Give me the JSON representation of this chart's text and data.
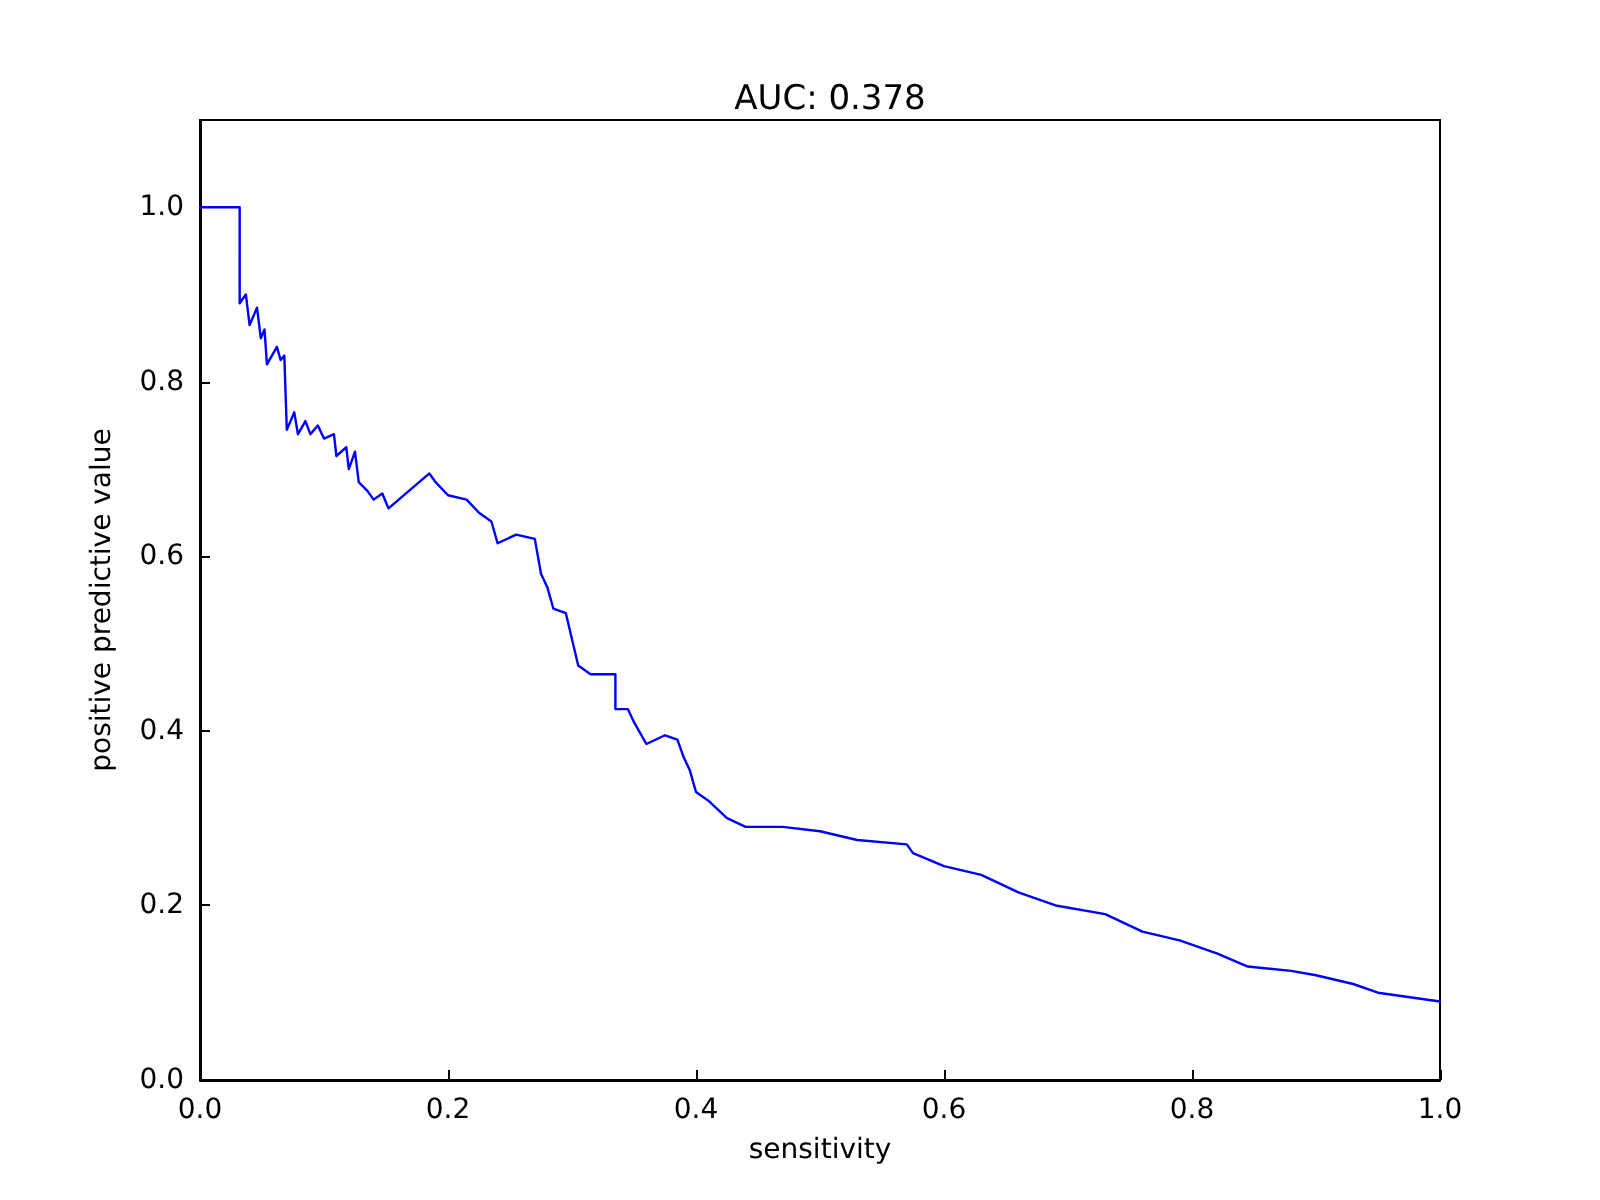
{
  "chart_data": {
    "type": "line",
    "title": "AUC: 0.378",
    "xlabel": "sensitivity",
    "ylabel": "positive predictive value",
    "xlim": [
      0,
      1
    ],
    "ylim": [
      0,
      1.1
    ],
    "xticks": [
      {
        "value": 0,
        "label": "0.0"
      },
      {
        "value": 0.2,
        "label": "0.2"
      },
      {
        "value": 0.4,
        "label": "0.4"
      },
      {
        "value": 0.6,
        "label": "0.6"
      },
      {
        "value": 0.8,
        "label": "0.8"
      },
      {
        "value": 1,
        "label": "1.0"
      }
    ],
    "yticks": [
      {
        "value": 0,
        "label": "0.0"
      },
      {
        "value": 0.2,
        "label": "0.2"
      },
      {
        "value": 0.4,
        "label": "0.4"
      },
      {
        "value": 0.6,
        "label": "0.6"
      },
      {
        "value": 0.8,
        "label": "0.8"
      },
      {
        "value": 1,
        "label": "1.0"
      }
    ],
    "grid": false,
    "marker": "none",
    "line_style": "solid",
    "series": [
      {
        "color": "#0000ff",
        "x": [
          0,
          0.032,
          0.032,
          0.037,
          0.04,
          0.046,
          0.049,
          0.052,
          0.054,
          0.062,
          0.065,
          0.068,
          0.07,
          0.076,
          0.079,
          0.085,
          0.089,
          0.095,
          0.1,
          0.108,
          0.11,
          0.118,
          0.12,
          0.125,
          0.128,
          0.135,
          0.14,
          0.147,
          0.152,
          0.185,
          0.19,
          0.2,
          0.215,
          0.225,
          0.235,
          0.24,
          0.255,
          0.27,
          0.275,
          0.28,
          0.285,
          0.295,
          0.3,
          0.305,
          0.315,
          0.335,
          0.335,
          0.345,
          0.35,
          0.36,
          0.375,
          0.385,
          0.39,
          0.395,
          0.4,
          0.41,
          0.425,
          0.44,
          0.47,
          0.5,
          0.53,
          0.57,
          0.575,
          0.6,
          0.63,
          0.66,
          0.69,
          0.73,
          0.76,
          0.79,
          0.82,
          0.845,
          0.88,
          0.9,
          0.93,
          0.95,
          1.0
        ],
        "values": [
          1.0,
          1.0,
          0.89,
          0.9,
          0.865,
          0.885,
          0.85,
          0.86,
          0.82,
          0.84,
          0.825,
          0.83,
          0.745,
          0.765,
          0.74,
          0.755,
          0.74,
          0.75,
          0.735,
          0.74,
          0.715,
          0.725,
          0.7,
          0.72,
          0.685,
          0.675,
          0.665,
          0.672,
          0.655,
          0.695,
          0.685,
          0.67,
          0.665,
          0.65,
          0.64,
          0.615,
          0.625,
          0.62,
          0.58,
          0.565,
          0.54,
          0.535,
          0.505,
          0.475,
          0.465,
          0.465,
          0.425,
          0.425,
          0.41,
          0.385,
          0.395,
          0.39,
          0.37,
          0.355,
          0.33,
          0.32,
          0.3,
          0.29,
          0.29,
          0.285,
          0.275,
          0.27,
          0.26,
          0.245,
          0.235,
          0.215,
          0.2,
          0.19,
          0.17,
          0.16,
          0.145,
          0.13,
          0.125,
          0.12,
          0.11,
          0.1,
          0.09
        ]
      }
    ]
  }
}
